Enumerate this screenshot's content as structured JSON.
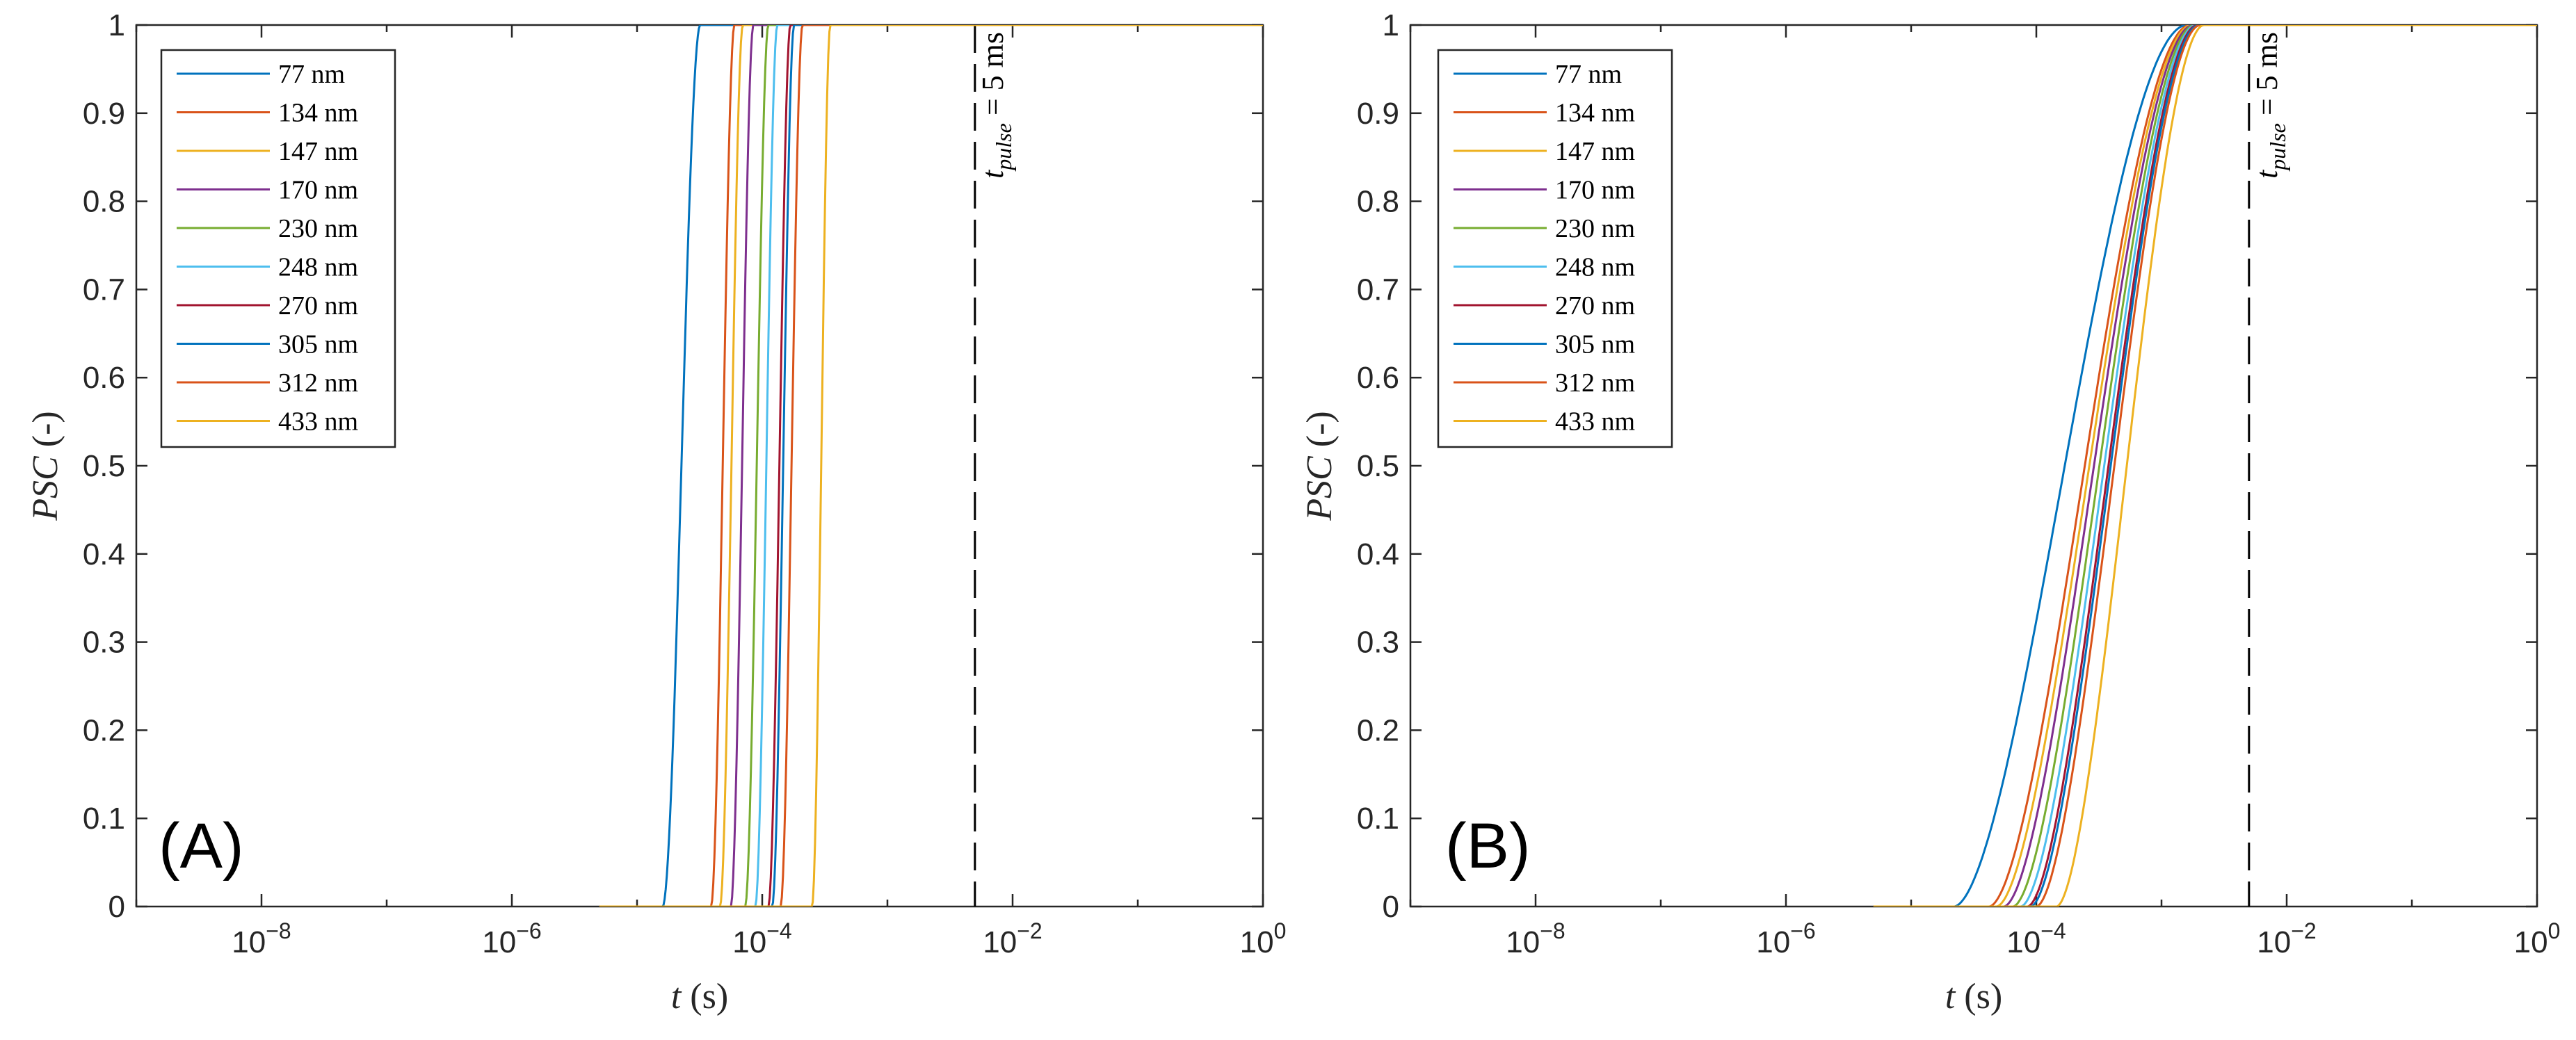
{
  "chart_data": [
    {
      "type": "line",
      "panel_label": "(A)",
      "xscale": "log",
      "xlim": [
        1e-09,
        1
      ],
      "ylim": [
        0,
        1
      ],
      "xticks": [
        {
          "value": 1e-08,
          "base": "10",
          "exp": "−8"
        },
        {
          "value": 1e-06,
          "base": "10",
          "exp": "−6"
        },
        {
          "value": 0.0001,
          "base": "10",
          "exp": "−4"
        },
        {
          "value": 0.01,
          "base": "10",
          "exp": "−2"
        },
        {
          "value": 1,
          "base": "10",
          "exp": "0"
        }
      ],
      "yticks": [
        "0",
        "0.1",
        "0.2",
        "0.3",
        "0.4",
        "0.5",
        "0.6",
        "0.7",
        "0.8",
        "0.9",
        "1"
      ],
      "xlabel_var": "t",
      "xlabel_unit": " (s)",
      "ylabel_var": "PSC",
      "ylabel_unit": " (-)",
      "legend_position": "top-left",
      "vline": {
        "x": 0.005,
        "label_var": "t",
        "label_sub": "pulse",
        "label_rest": " = 5 ms"
      },
      "curve_model": "steep sigmoid in log10(t): t_start is where PSC leaves 0, t_end is where it reaches 1",
      "series": [
        {
          "name": "77 nm",
          "color": "#0072BD",
          "t_start": 1.6e-05,
          "t_end": 3.2e-05
        },
        {
          "name": "134 nm",
          "color": "#D95319",
          "t_start": 3.9e-05,
          "t_end": 6e-05
        },
        {
          "name": "147 nm",
          "color": "#EDB120",
          "t_start": 4.6e-05,
          "t_end": 7e-05
        },
        {
          "name": "170 nm",
          "color": "#7E2F8E",
          "t_start": 5.6e-05,
          "t_end": 8.5e-05
        },
        {
          "name": "230 nm",
          "color": "#77AC30",
          "t_start": 7.3e-05,
          "t_end": 0.000112
        },
        {
          "name": "248 nm",
          "color": "#4DBEEE",
          "t_start": 8.8e-05,
          "t_end": 0.000132
        },
        {
          "name": "270 nm",
          "color": "#A2142F",
          "t_start": 0.000112,
          "t_end": 0.000168
        },
        {
          "name": "305 nm",
          "color": "#0072BD",
          "t_start": 0.00012,
          "t_end": 0.00018
        },
        {
          "name": "312 nm",
          "color": "#D95319",
          "t_start": 0.00014,
          "t_end": 0.00021
        },
        {
          "name": "433 nm",
          "color": "#EDB120",
          "t_start": 0.00025,
          "t_end": 0.00035
        }
      ]
    },
    {
      "type": "line",
      "panel_label": "(B)",
      "xscale": "log",
      "xlim": [
        1e-09,
        1
      ],
      "ylim": [
        0,
        1
      ],
      "xticks": [
        {
          "value": 1e-08,
          "base": "10",
          "exp": "−8"
        },
        {
          "value": 1e-06,
          "base": "10",
          "exp": "−6"
        },
        {
          "value": 0.0001,
          "base": "10",
          "exp": "−4"
        },
        {
          "value": 0.01,
          "base": "10",
          "exp": "−2"
        },
        {
          "value": 1,
          "base": "10",
          "exp": "0"
        }
      ],
      "yticks": [
        "0",
        "0.1",
        "0.2",
        "0.3",
        "0.4",
        "0.5",
        "0.6",
        "0.7",
        "0.8",
        "0.9",
        "1"
      ],
      "xlabel_var": "t",
      "xlabel_unit": " (s)",
      "ylabel_var": "PSC",
      "ylabel_unit": " (-)",
      "legend_position": "top-left",
      "vline": {
        "x": 0.005,
        "label_var": "t",
        "label_sub": "pulse",
        "label_rest": " = 5 ms"
      },
      "curve_model": "smooth sigmoid in log10(t): t_start is where PSC leaves 0, t_end is where it reaches 1",
      "series": [
        {
          "name": "77 nm",
          "color": "#0072BD",
          "t_start": 2.2e-05,
          "t_end": 0.0016
        },
        {
          "name": "134 nm",
          "color": "#D95319",
          "t_start": 4.2e-05,
          "t_end": 0.0017
        },
        {
          "name": "147 nm",
          "color": "#EDB120",
          "t_start": 4.8e-05,
          "t_end": 0.00175
        },
        {
          "name": "170 nm",
          "color": "#7E2F8E",
          "t_start": 5.5e-05,
          "t_end": 0.0018
        },
        {
          "name": "230 nm",
          "color": "#77AC30",
          "t_start": 6.5e-05,
          "t_end": 0.00185
        },
        {
          "name": "248 nm",
          "color": "#4DBEEE",
          "t_start": 7.5e-05,
          "t_end": 0.0019
        },
        {
          "name": "270 nm",
          "color": "#A2142F",
          "t_start": 8.5e-05,
          "t_end": 0.00195
        },
        {
          "name": "305 nm",
          "color": "#0072BD",
          "t_start": 9e-05,
          "t_end": 0.002
        },
        {
          "name": "312 nm",
          "color": "#D95319",
          "t_start": 0.0001,
          "t_end": 0.00205
        },
        {
          "name": "433 nm",
          "color": "#EDB120",
          "t_start": 0.000145,
          "t_end": 0.0022
        }
      ]
    }
  ]
}
